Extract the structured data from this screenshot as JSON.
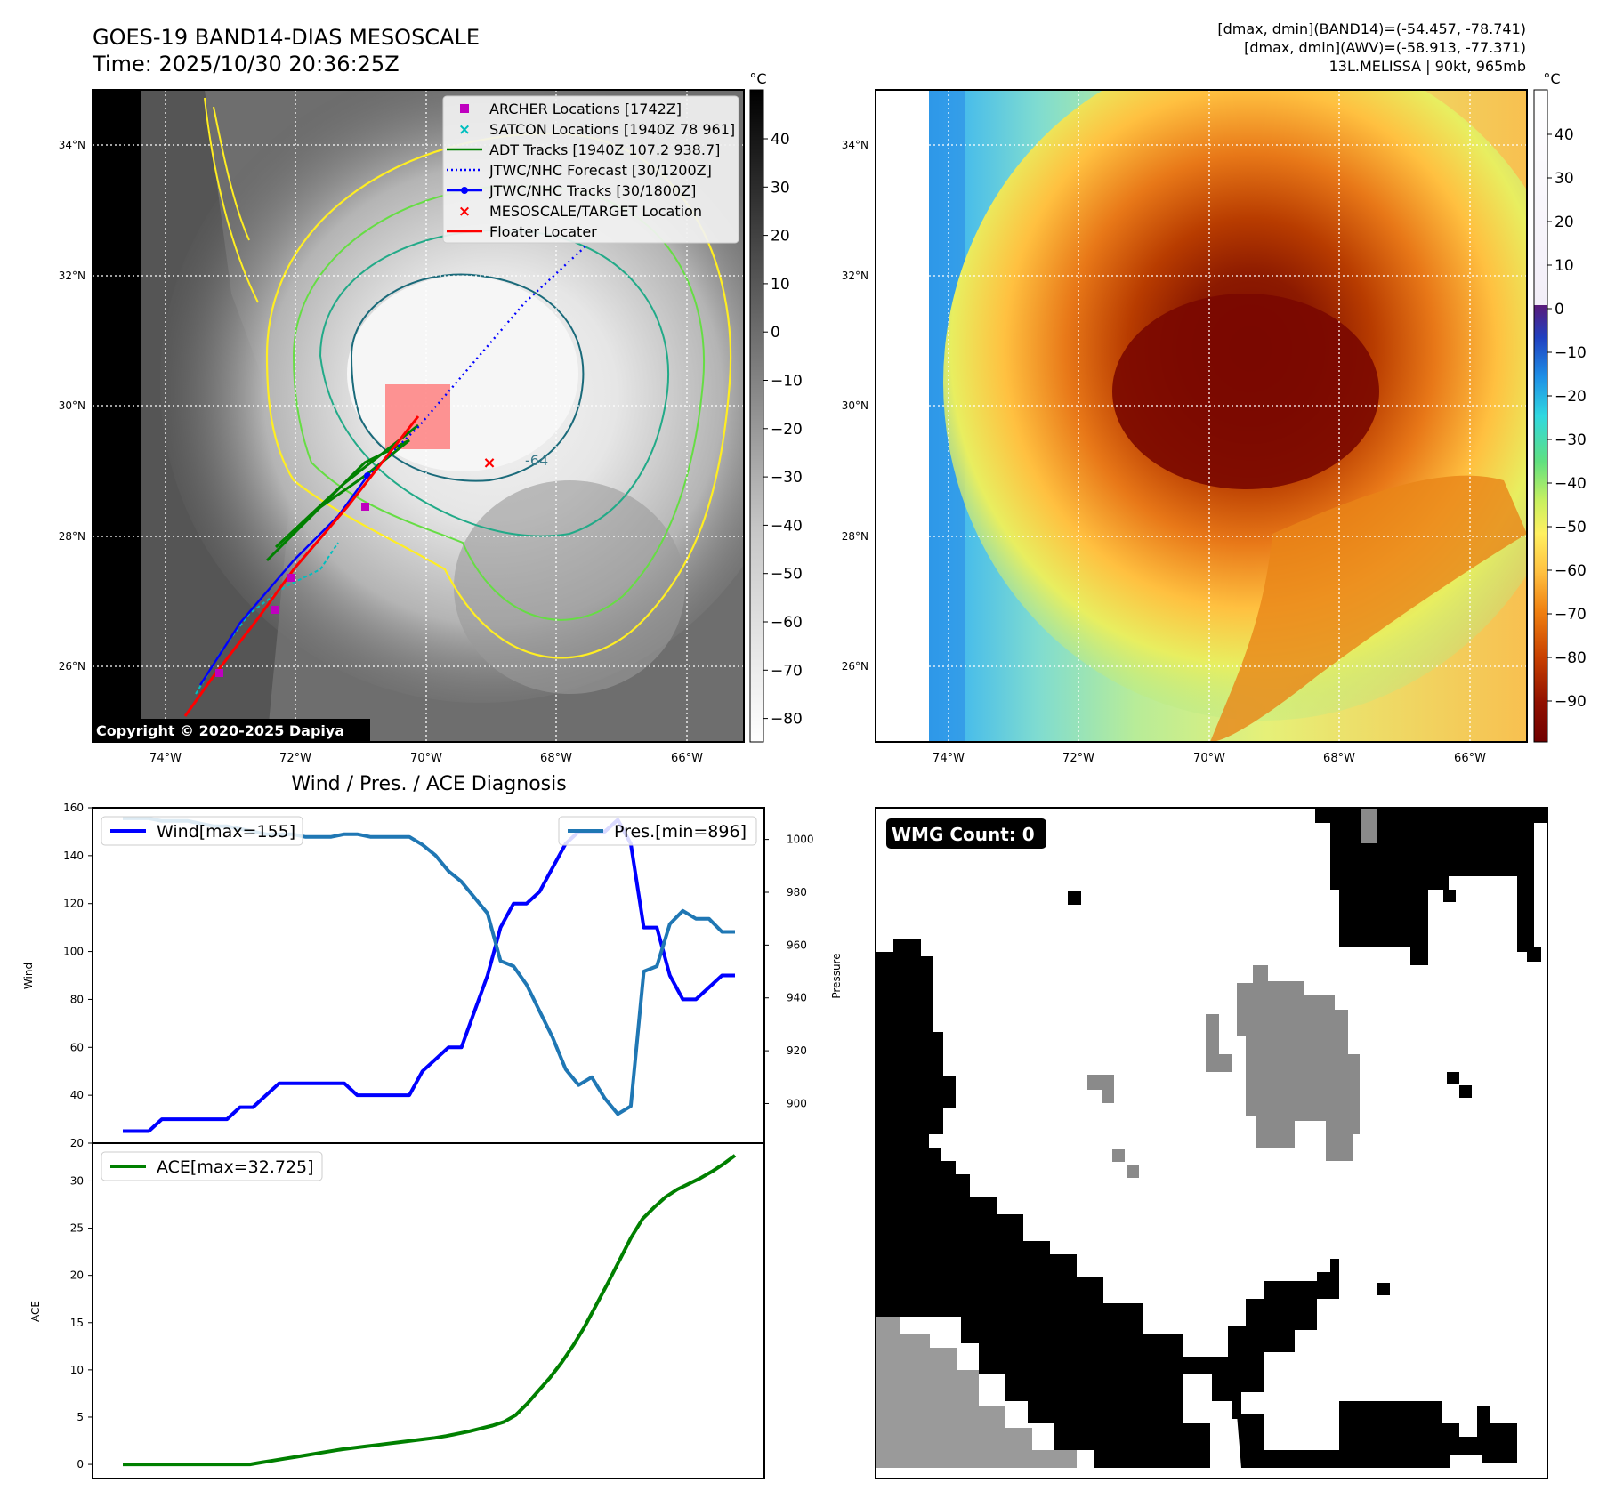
{
  "header": {
    "title": "GOES-19 BAND14-DIAS MESOSCALE",
    "time": "Time: 2025/10/30 20:36:25Z",
    "stats_band14": "[dmax, dmin](BAND14)=(-54.457, -78.741)",
    "stats_awv": "[dmax, dmin](AWV)=(-58.913, -77.371)",
    "storm": "13L.MELISSA | 90kt, 965mb"
  },
  "map": {
    "lat_labels": [
      "34°N",
      "32°N",
      "30°N",
      "28°N",
      "26°N"
    ],
    "lon_labels": [
      "74°W",
      "72°W",
      "70°W",
      "68°W",
      "66°W"
    ],
    "copyright": "Copyright © 2020-2025 Dapiya",
    "contour_label": "-64",
    "colorbar_unit": "°C",
    "gray_colorbar_ticks": [
      "40",
      "30",
      "20",
      "10",
      "0",
      "−10",
      "−20",
      "−30",
      "−40",
      "−50",
      "−60",
      "−70",
      "−80"
    ],
    "color_colorbar_ticks": [
      "40",
      "30",
      "20",
      "10",
      "0",
      "−10",
      "−20",
      "−30",
      "−40",
      "−50",
      "−60",
      "−70",
      "−80",
      "−90"
    ],
    "legend": [
      {
        "label": "ARCHER Locations [1742Z]",
        "color": "#bf00bf",
        "marker": "square"
      },
      {
        "label": "SATCON Locations [1940Z 78 961]",
        "color": "#00bfbf",
        "marker": "x"
      },
      {
        "label": "ADT Tracks [1940Z 107.2 938.7]",
        "color": "#008000",
        "marker": "line"
      },
      {
        "label": "JTWC/NHC Forecast [30/1200Z]",
        "color": "#0000ff",
        "marker": "dotted"
      },
      {
        "label": "JTWC/NHC Tracks [30/1800Z]",
        "color": "#0000ff",
        "marker": "line-dot"
      },
      {
        "label": "MESOSCALE/TARGET Location",
        "color": "#ff0000",
        "marker": "x"
      },
      {
        "label": "Floater Locater",
        "color": "#ff0000",
        "marker": "line"
      }
    ]
  },
  "wmg": {
    "label": "WMG Count: 0"
  },
  "chart_data": [
    {
      "type": "line",
      "title": "Wind / Pres. / ACE Diagnosis",
      "ylabel": "Wind",
      "y2label": "Pressure",
      "ylim": [
        20,
        160
      ],
      "y2lim": [
        885,
        1012
      ],
      "yticks": [
        20,
        40,
        60,
        80,
        100,
        120,
        140,
        160
      ],
      "y2ticks": [
        900,
        920,
        940,
        960,
        980,
        1000
      ],
      "series": [
        {
          "name": "Wind[max=155]",
          "color": "#0000ff",
          "values": [
            25,
            25,
            25,
            30,
            30,
            30,
            30,
            30,
            30,
            35,
            35,
            40,
            45,
            45,
            45,
            45,
            45,
            45,
            40,
            40,
            40,
            40,
            40,
            50,
            55,
            60,
            60,
            75,
            90,
            110,
            120,
            120,
            125,
            135,
            145,
            150,
            150,
            150,
            155,
            145,
            110,
            110,
            90,
            80,
            80,
            85,
            90,
            90
          ]
        },
        {
          "name": "Pres.[min=896]",
          "color": "#1f77b4",
          "axis": "right",
          "values": [
            1008,
            1008,
            1008,
            1007,
            1007,
            1007,
            1006,
            1005,
            1005,
            1004,
            1003,
            1002,
            1002,
            1002,
            1001,
            1001,
            1001,
            1002,
            1002,
            1001,
            1001,
            1001,
            1001,
            998,
            994,
            988,
            984,
            978,
            972,
            954,
            952,
            945,
            935,
            925,
            913,
            907,
            910,
            902,
            896,
            899,
            950,
            952,
            968,
            973,
            970,
            970,
            965,
            965
          ]
        }
      ]
    },
    {
      "type": "line",
      "ylabel": "ACE",
      "ylim": [
        -1.5,
        34
      ],
      "yticks": [
        0,
        5,
        10,
        15,
        20,
        25,
        30
      ],
      "series": [
        {
          "name": "ACE[max=32.725]",
          "color": "#008000",
          "values": [
            0,
            0,
            0,
            0,
            0,
            0,
            0,
            0,
            0,
            0,
            0,
            0,
            0.2,
            0.4,
            0.6,
            0.8,
            1.0,
            1.2,
            1.4,
            1.6,
            1.75,
            1.9,
            2.05,
            2.2,
            2.35,
            2.5,
            2.65,
            2.8,
            3.0,
            3.25,
            3.5,
            3.8,
            4.1,
            4.5,
            5.2,
            6.4,
            7.8,
            9.2,
            10.8,
            12.6,
            14.6,
            16.9,
            19.2,
            21.6,
            24.0,
            26.0,
            27.2,
            28.3,
            29.1,
            29.7,
            30.3,
            31.0,
            31.8,
            32.7
          ]
        }
      ]
    }
  ]
}
